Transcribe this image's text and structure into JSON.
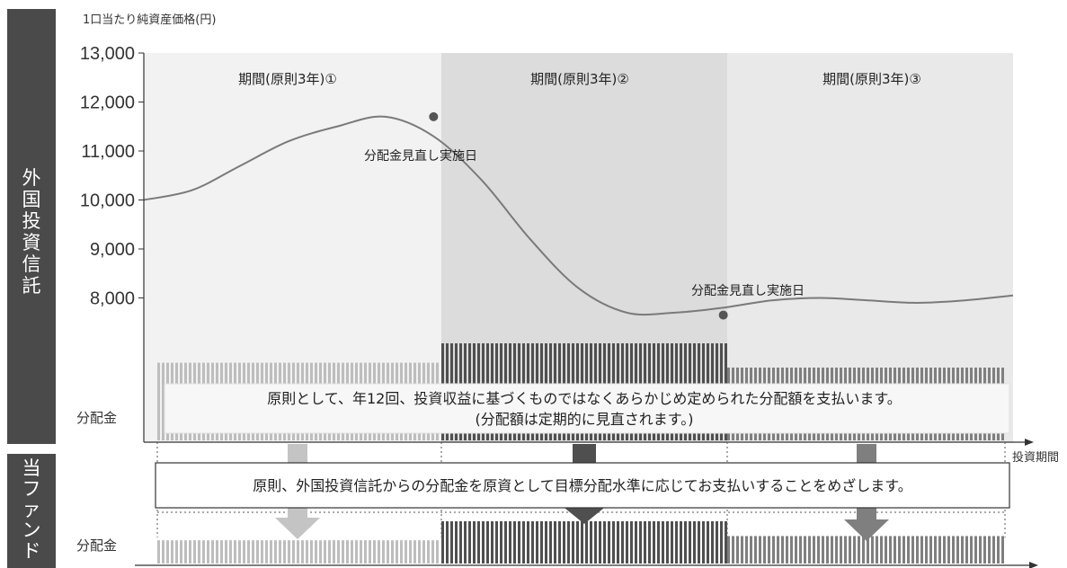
{
  "side_labels": {
    "upper": "外国投資信託",
    "lower": "当ファンド"
  },
  "y_axis_title": "1口当たり純資産価格(円)",
  "x_axis_title": "投資期間",
  "distribution_label_upper": "分配金",
  "distribution_label_lower": "分配金",
  "periods": [
    "期間(原則3年)①",
    "期間(原則3年)②",
    "期間(原則3年)③"
  ],
  "annotations": {
    "review_date_1": "分配金見直し実施日",
    "review_date_2": "分配金見直し実施日"
  },
  "upper_box": {
    "line1": "原則として、年12回、投資収益に基づくものではなくあらかじめ定められた分配額を支払います。",
    "line2": "(分配額は定期的に見直されます。)"
  },
  "lower_box": "原則、外国投資信託からの分配金を原資として目標分配水準に応じてお支払いすることをめざします。",
  "colors": {
    "side_panel": "#4a4a4a",
    "period_1_bg": "#f2f2f2",
    "period_2_bg": "#dcdcdc",
    "period_3_bg": "#e9e9e9",
    "line": "#7a7a7a",
    "bar_period_1": "#bdbdbd",
    "bar_period_2": "#4f4f4f",
    "bar_period_3": "#7f7f7f",
    "arrow_1": "#c4c4c4",
    "arrow_2": "#4f4f4f",
    "arrow_3": "#7f7f7f"
  },
  "chart_data": {
    "type": "line",
    "ylim": [
      7000,
      13000
    ],
    "yticks": [
      8000,
      9000,
      10000,
      11000,
      12000,
      13000
    ],
    "ytick_labels": [
      "8,000",
      "9,000",
      "10,000",
      "11,000",
      "12,000",
      "13,000"
    ],
    "series": [
      {
        "x": [
          0,
          0.5,
          1.0,
          1.5,
          2.0,
          2.5,
          3.0,
          3.5,
          4.0,
          4.5,
          5.0,
          5.5,
          6.0,
          6.5,
          7.0,
          7.5,
          8.0,
          8.5,
          9.0
        ],
        "values": [
          10000,
          10200,
          10700,
          11200,
          11500,
          11700,
          11300,
          10400,
          9200,
          8200,
          7700,
          7700,
          7800,
          7950,
          8000,
          7950,
          7900,
          7950,
          8050
        ]
      }
    ],
    "review_points": [
      {
        "x": 3.0,
        "y": 11700
      },
      {
        "x": 6.0,
        "y": 7650
      }
    ],
    "distribution_upper": {
      "period_1": 0.8,
      "period_2": 1.0,
      "period_3": 0.75
    },
    "distribution_lower": {
      "period_1": 0.55,
      "period_2": 1.0,
      "period_3": 0.65
    }
  }
}
